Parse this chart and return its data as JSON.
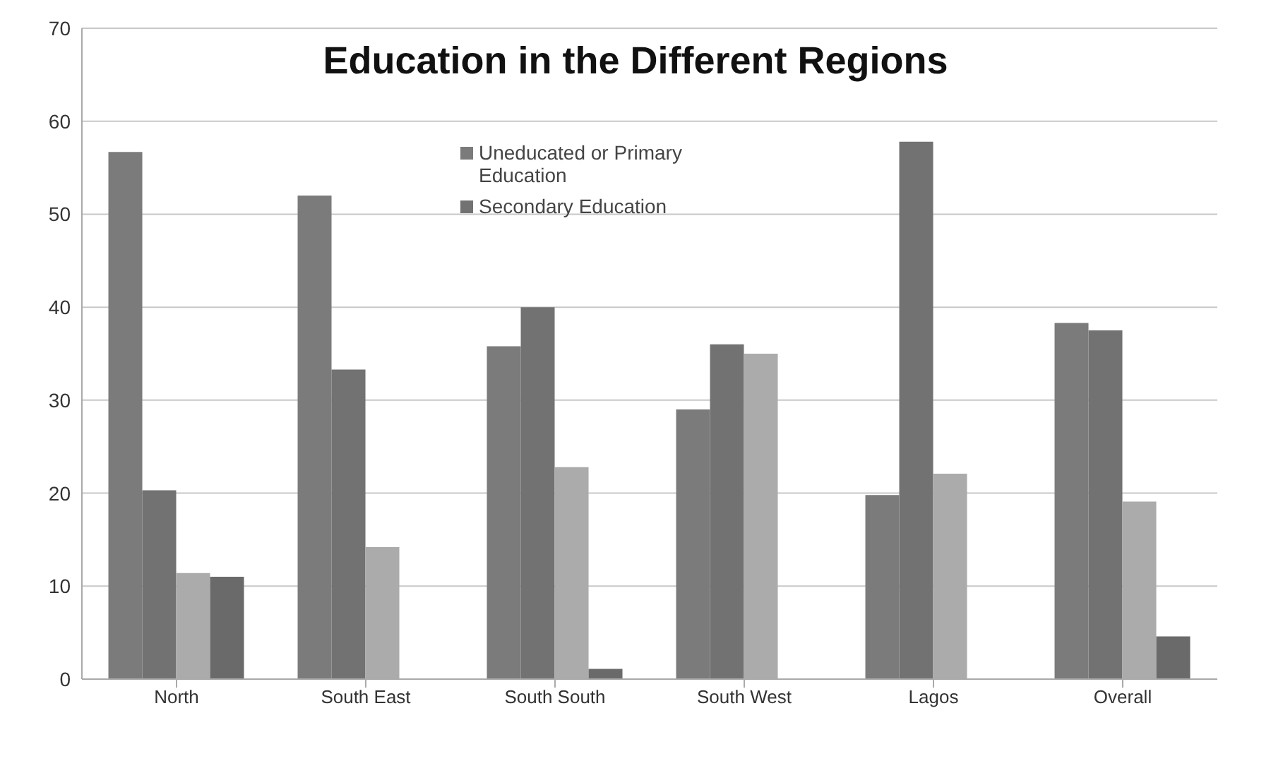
{
  "chart_data": {
    "type": "bar",
    "title": "Education in the Different Regions",
    "categories": [
      "North",
      "South East",
      "South South",
      "South West",
      "Lagos",
      "Overall"
    ],
    "series": [
      {
        "name": "Uneducated or Primary Education",
        "color": "#7b7b7b",
        "values": [
          56.7,
          52,
          35.8,
          29,
          19.8,
          38.3
        ]
      },
      {
        "name": "Secondary Education",
        "color": "#727272",
        "values": [
          20.3,
          33.3,
          40,
          36,
          57.8,
          37.5
        ]
      },
      {
        "color": "#ababab",
        "values": [
          11.4,
          14.2,
          22.8,
          35,
          22.1,
          19.1
        ]
      },
      {
        "color": "#6a6a6a",
        "values": [
          11,
          0,
          1.1,
          0,
          0,
          4.6
        ]
      }
    ],
    "ylim": [
      0,
      70
    ],
    "yticks": [
      0,
      10,
      20,
      30,
      40,
      50,
      60,
      70
    ],
    "grid": "y",
    "legend": "top"
  }
}
